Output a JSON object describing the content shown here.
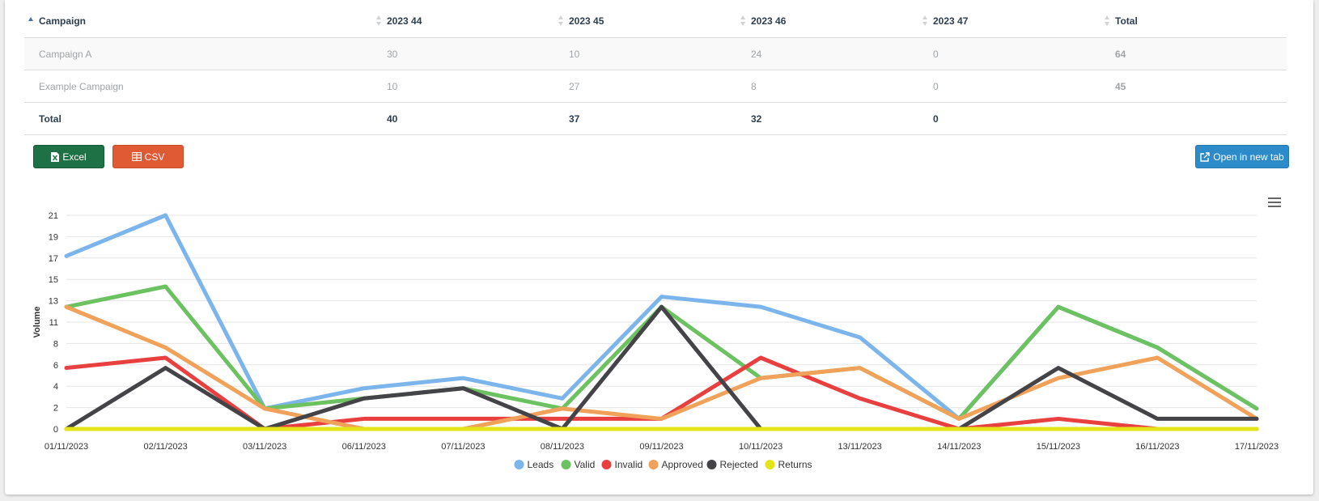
{
  "table": {
    "headers": [
      "Campaign",
      "2023 44",
      "2023 45",
      "2023 46",
      "2023 47",
      "Total"
    ],
    "rows": [
      {
        "campaign": "Campaign A",
        "w44": "30",
        "w45": "10",
        "w46": "24",
        "w47": "0",
        "total": "64"
      },
      {
        "campaign": "Example Campaign",
        "w44": "10",
        "w45": "27",
        "w46": "8",
        "w47": "0",
        "total": "45"
      }
    ],
    "totals": {
      "label": "Total",
      "w44": "40",
      "w45": "37",
      "w46": "32",
      "w47": "0",
      "total": ""
    }
  },
  "buttons": {
    "excel": "Excel",
    "csv": "CSV",
    "new_tab": "Open in new tab"
  },
  "colors": {
    "excel": "#1e7145",
    "csv": "#e05a34",
    "new_tab": "#2e8bc9"
  },
  "chart_data": {
    "type": "line",
    "title": "",
    "xlabel": "",
    "ylabel": "Volume",
    "x": [
      "01/11/2023",
      "02/11/2023",
      "03/11/2023",
      "06/11/2023",
      "07/11/2023",
      "08/11/2023",
      "09/11/2023",
      "10/11/2023",
      "13/11/2023",
      "14/11/2023",
      "15/11/2023",
      "16/11/2023",
      "17/11/2023"
    ],
    "yticks": [
      0,
      2,
      4,
      6,
      8,
      11,
      13,
      15,
      17,
      19,
      21
    ],
    "ylim": [
      0,
      21
    ],
    "grid": true,
    "legend_position": "bottom",
    "series": [
      {
        "name": "Leads",
        "color": "#7cb5ec",
        "values": [
          17,
          21,
          2,
          4,
          5,
          3,
          13,
          12,
          9,
          1,
          12,
          8,
          2
        ]
      },
      {
        "name": "Valid",
        "color": "#6cc160",
        "values": [
          12,
          14,
          2,
          3,
          4,
          2,
          12,
          5,
          6,
          1,
          12,
          8,
          2
        ]
      },
      {
        "name": "Invalid",
        "color": "#e8403f",
        "values": [
          6,
          7,
          0,
          1,
          1,
          1,
          1,
          7,
          3,
          0,
          1,
          0,
          0
        ]
      },
      {
        "name": "Approved",
        "color": "#f0a15a",
        "values": [
          12,
          8,
          2,
          0,
          0,
          2,
          1,
          5,
          6,
          1,
          5,
          7,
          1
        ]
      },
      {
        "name": "Rejected",
        "color": "#434348",
        "values": [
          0,
          6,
          0,
          3,
          4,
          0,
          12,
          0,
          0,
          0,
          6,
          1,
          1
        ]
      },
      {
        "name": "Returns",
        "color": "#e4e41a",
        "values": [
          0,
          0,
          0,
          0,
          0,
          0,
          0,
          0,
          0,
          0,
          0,
          0,
          0
        ]
      }
    ]
  }
}
